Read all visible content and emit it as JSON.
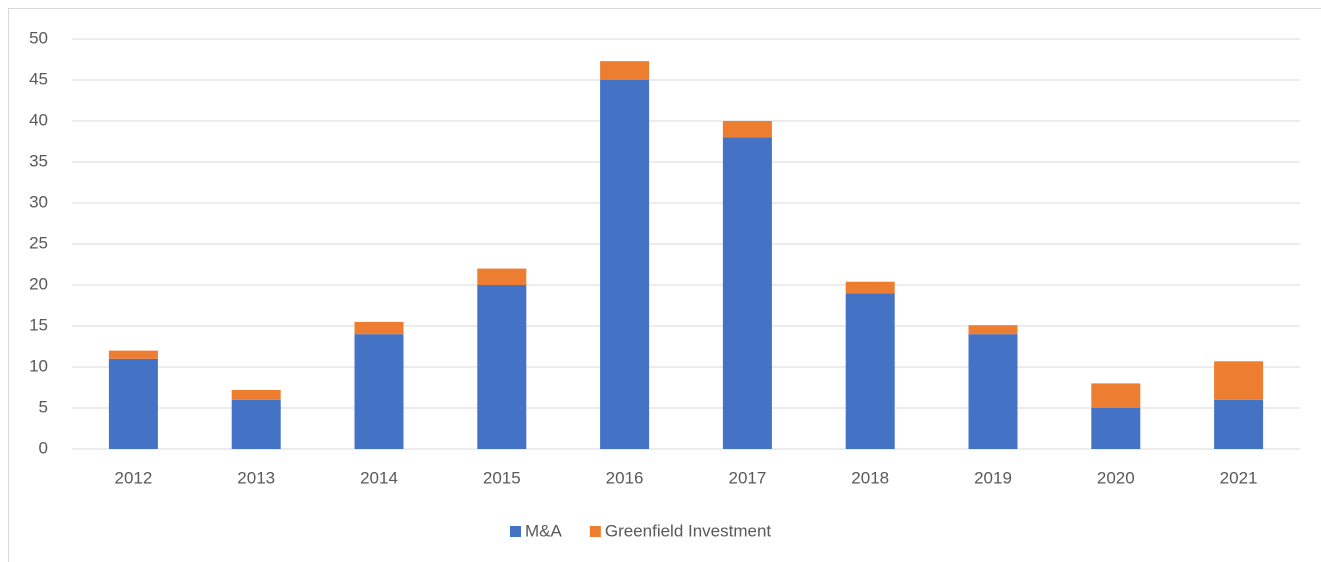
{
  "chart_data": {
    "type": "stacked-bar",
    "categories": [
      "2012",
      "2013",
      "2014",
      "2015",
      "2016",
      "2017",
      "2018",
      "2019",
      "2020",
      "2021"
    ],
    "series": [
      {
        "name": "M&A",
        "color": "#4472c4",
        "values": [
          11,
          6,
          14,
          20,
          45,
          38,
          19,
          14,
          5,
          6
        ]
      },
      {
        "name": "Greenfield Investment",
        "color": "#ed7d31",
        "values": [
          1,
          1.2,
          1.5,
          2,
          2.3,
          2,
          1.4,
          1.1,
          3,
          4.7
        ]
      }
    ],
    "ylim": [
      0,
      50
    ],
    "yticks": [
      0,
      5,
      10,
      15,
      20,
      25,
      30,
      35,
      40,
      45,
      50
    ],
    "grid": true,
    "legend": "bottom"
  }
}
